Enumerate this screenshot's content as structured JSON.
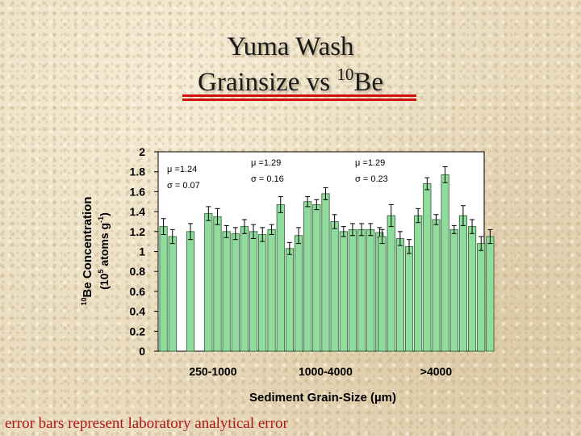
{
  "slide": {
    "title_line1": "Yuma Wash",
    "title_line2_prefix": "Grainsize vs ",
    "title_line2_sup": "10",
    "title_line2_suffix": "Be",
    "footnote": "error bars represent laboratory analytical error"
  },
  "chart_data": {
    "type": "bar",
    "xlabel": "Sediment Grain-Size (µm)",
    "ylabel_sup": "10",
    "ylabel_line1": "Be Concentration",
    "ylabel_line2_prefix": "(10",
    "ylabel_line2_sup": "5",
    "ylabel_line2_mid": " atoms g",
    "ylabel_line2_sup2": "-1",
    "ylabel_line2_suffix": ")",
    "ylim": [
      0,
      2
    ],
    "yticks": [
      "0",
      "0.2",
      "0.4",
      "0.6",
      "0.8",
      "1",
      "1.2",
      "1.4",
      "1.6",
      "1.8",
      "2"
    ],
    "grid": false,
    "bar_color": "#8fdc9c",
    "groups": [
      {
        "label": "250-1000",
        "stats_mu": "μ  =1.24",
        "stats_sigma": "σ  = 0.07",
        "values": [
          1.25,
          1.15,
          0,
          1.2,
          0,
          1.38,
          1.35,
          1.2,
          1.18,
          1.25,
          1.2,
          1.17
        ],
        "errors": [
          0.08,
          0.07,
          0,
          0.08,
          0,
          0.07,
          0.08,
          0.06,
          0.06,
          0.07,
          0.07,
          0.07
        ]
      },
      {
        "label": "1000-4000",
        "stats_mu": "μ  =1.29",
        "stats_sigma": "σ  = 0.16",
        "values": [
          1.22,
          1.47,
          1.03,
          1.16,
          1.5,
          1.47,
          1.58,
          1.3,
          1.2,
          1.22,
          1.22,
          1.22,
          1.19
        ],
        "errors": [
          0.05,
          0.08,
          0.06,
          0.08,
          0.05,
          0.05,
          0.06,
          0.07,
          0.05,
          0.06,
          0.06,
          0.06,
          0.05
        ]
      },
      {
        "label": ">4000",
        "stats_mu": "μ  =1.29",
        "stats_sigma": "σ  = 0.23",
        "values": [
          1.15,
          1.36,
          1.13,
          1.05,
          1.36,
          1.68,
          1.32,
          1.77,
          1.22,
          1.36,
          1.25,
          1.08,
          1.15
        ],
        "errors": [
          0.07,
          0.11,
          0.07,
          0.07,
          0.07,
          0.06,
          0.05,
          0.08,
          0.04,
          0.1,
          0.07,
          0.07,
          0.07
        ]
      }
    ]
  }
}
